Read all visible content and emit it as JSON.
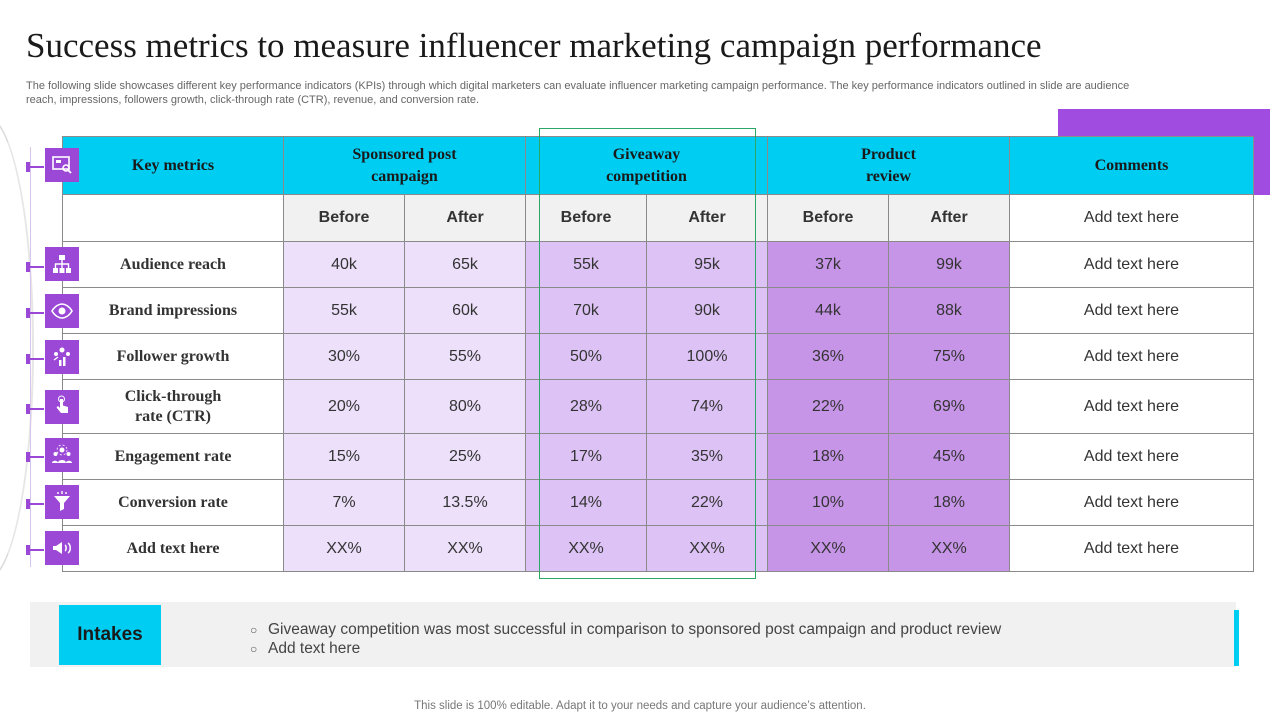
{
  "title": "Success metrics to measure influencer marketing campaign performance",
  "subtitle": "The following slide showcases different key performance indicators (KPIs) through which digital marketers can evaluate influencer marketing campaign performance. The key performance indicators outlined in slide are audience reach, impressions, followers growth, click-through rate (CTR), revenue, and conversion rate.",
  "table": {
    "headers": {
      "key_metrics": "Key metrics",
      "sponsored": "Sponsored post campaign",
      "giveaway": "Giveaway competition",
      "product": "Product review",
      "comments": "Comments"
    },
    "before": "Before",
    "after": "After",
    "comments_header_text": "Add text here",
    "rows": [
      {
        "metric": "Audience reach",
        "icon": "hierarchy-icon",
        "values": [
          "40k",
          "65k",
          "55k",
          "95k",
          "37k",
          "99k"
        ],
        "comment": "Add text here"
      },
      {
        "metric": "Brand impressions",
        "icon": "eye-icon",
        "values": [
          "55k",
          "60k",
          "70k",
          "90k",
          "44k",
          "88k"
        ],
        "comment": "Add text here"
      },
      {
        "metric": "Follower growth",
        "icon": "group-growth-icon",
        "values": [
          "30%",
          "55%",
          "50%",
          "100%",
          "36%",
          "75%"
        ],
        "comment": "Add text here"
      },
      {
        "metric": "Click-through rate (CTR)",
        "icon": "click-hand-icon",
        "values": [
          "20%",
          "80%",
          "28%",
          "74%",
          "22%",
          "69%"
        ],
        "comment": "Add text here"
      },
      {
        "metric": "Engagement rate",
        "icon": "team-icon",
        "values": [
          "15%",
          "25%",
          "17%",
          "35%",
          "18%",
          "45%"
        ],
        "comment": "Add text here"
      },
      {
        "metric": "Conversion rate",
        "icon": "funnel-icon",
        "values": [
          "7%",
          "13.5%",
          "14%",
          "22%",
          "10%",
          "18%"
        ],
        "comment": "Add text here"
      },
      {
        "metric": "Add text here",
        "icon": "megaphone-icon",
        "values": [
          "XX%",
          "XX%",
          "XX%",
          "XX%",
          "XX%",
          "XX%"
        ],
        "comment": "Add text here"
      }
    ]
  },
  "intakes": {
    "label": "Intakes",
    "items": [
      "Giveaway competition was most successful in comparison to sponsored post campaign and product review",
      "Add text here"
    ]
  },
  "footer": "This slide is 100% editable. Adapt it to your needs and capture your audience’s attention.",
  "colors": {
    "accent_cyan": "#00cdf2",
    "accent_purple": "#9b48d6"
  }
}
